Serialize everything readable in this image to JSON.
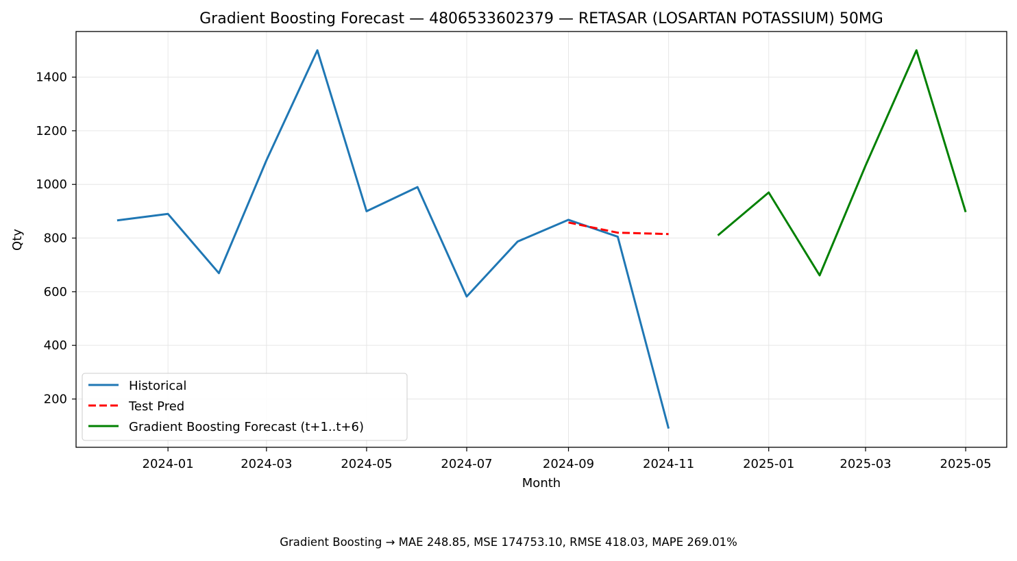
{
  "chart_data": {
    "type": "line",
    "title": "Gradient Boosting Forecast — 4806533602379 — RETASAR (LOSARTAN POTASSIUM) 50MG",
    "xlabel": "Month",
    "ylabel": "Qty",
    "x_ticks": [
      "2024-01",
      "2024-03",
      "2024-05",
      "2024-07",
      "2024-09",
      "2024-11",
      "2025-01",
      "2025-03",
      "2025-05"
    ],
    "y_ticks": [
      200,
      400,
      600,
      800,
      1000,
      1200,
      1400
    ],
    "xlim": [
      "2023-11-06",
      "2025-05-26"
    ],
    "ylim": [
      20,
      1570
    ],
    "grid": true,
    "legend_position": "lower-left",
    "series": [
      {
        "name": "Historical",
        "color": "#1f77b4",
        "style": "solid",
        "x": [
          "2023-12-01",
          "2024-01-01",
          "2024-02-01",
          "2024-03-01",
          "2024-04-01",
          "2024-05-01",
          "2024-06-01",
          "2024-07-01",
          "2024-08-01",
          "2024-09-01",
          "2024-10-01",
          "2024-11-01"
        ],
        "values": [
          866,
          890,
          669,
          1090,
          1500,
          900,
          990,
          582,
          787,
          868,
          805,
          90
        ]
      },
      {
        "name": "Test Pred",
        "color": "#ff0000",
        "style": "dashed",
        "x": [
          "2024-09-01",
          "2024-10-01",
          "2024-11-01"
        ],
        "values": [
          858,
          820,
          815
        ]
      },
      {
        "name": "Gradient Boosting Forecast (t+1..t+6)",
        "color": "#008000",
        "style": "solid",
        "x": [
          "2024-12-01",
          "2025-01-01",
          "2025-02-01",
          "2025-03-01",
          "2025-04-01",
          "2025-05-01"
        ],
        "values": [
          810,
          970,
          661,
          1070,
          1500,
          897
        ]
      }
    ]
  },
  "footer": {
    "metrics_text": "Gradient Boosting → MAE 248.85, MSE 174753.10, RMSE 418.03, MAPE 269.01%"
  }
}
